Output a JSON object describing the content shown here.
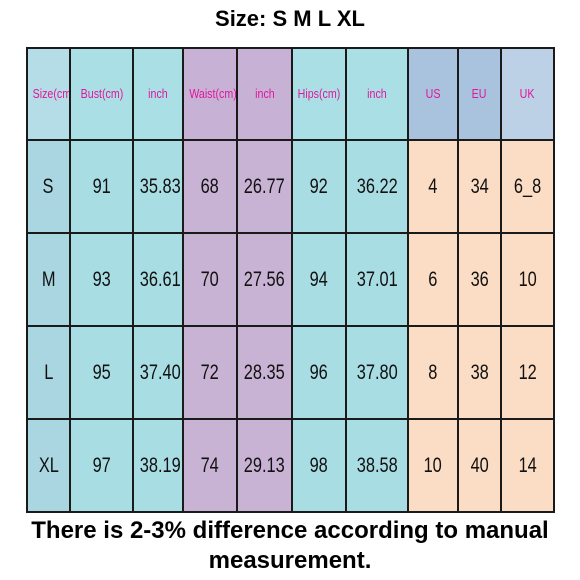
{
  "title": "Size: S M L XL",
  "headers": {
    "size": "Size(cm)",
    "bust": "Bust(cm)",
    "bust_inch": "inch",
    "waist": "Waist(cm)",
    "waist_inch": "inch",
    "hips": "Hips(cm)",
    "hips_inch": "inch",
    "us": "US",
    "eu": "EU",
    "uk": "UK"
  },
  "rows": [
    {
      "size": "S",
      "bust": "91",
      "bust_inch": "35.83",
      "waist": "68",
      "waist_inch": "26.77",
      "hips": "92",
      "hips_inch": "36.22",
      "us": "4",
      "eu": "34",
      "uk": "6_8"
    },
    {
      "size": "M",
      "bust": "93",
      "bust_inch": "36.61",
      "waist": "70",
      "waist_inch": "27.56",
      "hips": "94",
      "hips_inch": "37.01",
      "us": "6",
      "eu": "36",
      "uk": "10"
    },
    {
      "size": "L",
      "bust": "95",
      "bust_inch": "37.40",
      "waist": "72",
      "waist_inch": "28.35",
      "hips": "96",
      "hips_inch": "37.80",
      "us": "8",
      "eu": "38",
      "uk": "12"
    },
    {
      "size": "XL",
      "bust": "97",
      "bust_inch": "38.19",
      "waist": "74",
      "waist_inch": "29.13",
      "hips": "98",
      "hips_inch": "38.58",
      "us": "10",
      "eu": "40",
      "uk": "14"
    }
  ],
  "note": "There is 2-3% difference according to manual measurement.",
  "colors": {
    "header_text": "#e0169c",
    "cyan": "#a9dde4",
    "purple": "#c9b3d4",
    "peach": "#fbdcc4",
    "blue_header": "#a9c3df"
  }
}
